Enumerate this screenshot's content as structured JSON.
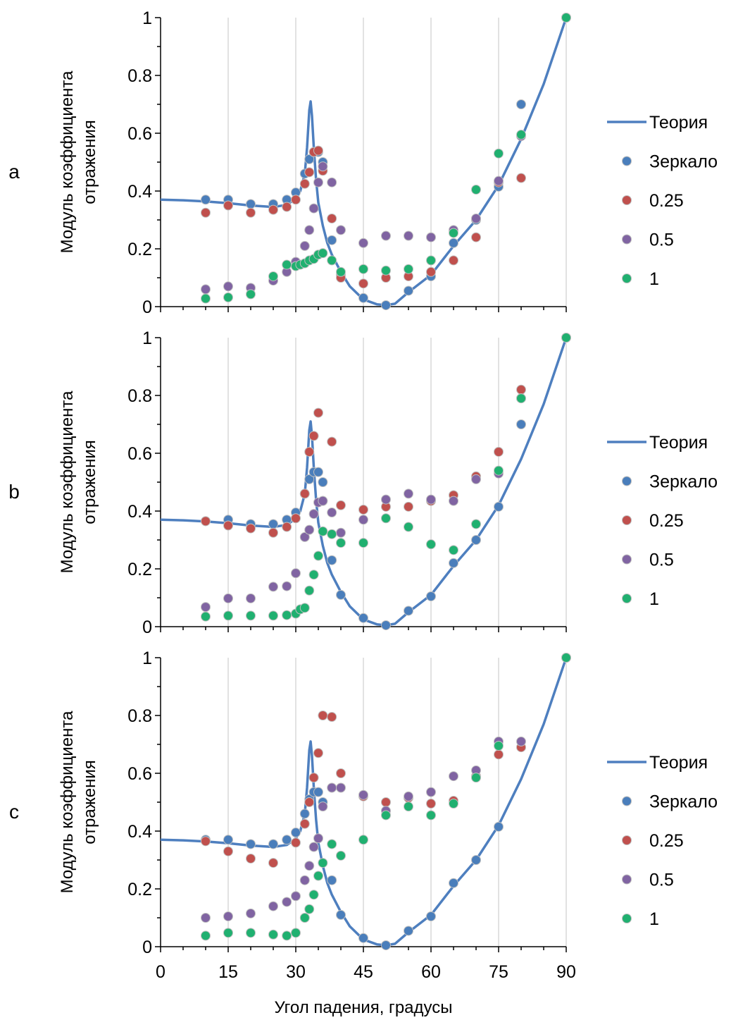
{
  "figure": {
    "ylabel_line1": "Модуль коэффициента",
    "ylabel_line2": "отражения",
    "xlabel": "Угол падения, градусы",
    "legend": [
      "Теория",
      "Зеркало",
      "0.25",
      "0.5",
      "1"
    ],
    "colors": {
      "theory": "#4e7fbf",
      "mirror": "#4a7ebb",
      "s025": "#c0504d",
      "s05": "#8064a2",
      "s1": "#20b070",
      "grid": "#d9d9d9"
    }
  },
  "chart_data": [
    {
      "type": "scatter",
      "panel_label": "a",
      "xlim": [
        0,
        90
      ],
      "ylim": [
        0,
        1
      ],
      "xticks": [
        0,
        15,
        30,
        45,
        60,
        75,
        90
      ],
      "yticks": [
        0,
        0.2,
        0.4,
        0.6,
        0.8,
        1
      ],
      "ytick_labels": [
        "0",
        "0.2",
        "0.4",
        "0.6",
        "0.8",
        "1"
      ],
      "grid": "vertical",
      "legend_position": "right",
      "series": [
        {
          "name": "Теория",
          "kind": "line",
          "x": [
            0,
            5,
            10,
            15,
            20,
            25,
            28,
            30,
            31,
            32,
            32.5,
            33,
            33.3,
            33.6,
            34,
            34.5,
            35,
            36,
            37,
            38,
            40,
            42,
            45,
            48,
            50,
            52,
            55,
            60,
            65,
            70,
            75,
            80,
            85,
            90
          ],
          "y": [
            0.37,
            0.368,
            0.364,
            0.358,
            0.35,
            0.345,
            0.352,
            0.375,
            0.4,
            0.46,
            0.55,
            0.68,
            0.71,
            0.66,
            0.55,
            0.44,
            0.36,
            0.28,
            0.22,
            0.18,
            0.12,
            0.07,
            0.025,
            0.008,
            0.005,
            0.01,
            0.05,
            0.11,
            0.21,
            0.3,
            0.42,
            0.58,
            0.77,
            1.0
          ]
        },
        {
          "name": "Зеркало",
          "kind": "points",
          "x": [
            10,
            15,
            20,
            25,
            28,
            30,
            32,
            33,
            34,
            35,
            36,
            38,
            40,
            45,
            50,
            55,
            60,
            65,
            70,
            75,
            80,
            90
          ],
          "y": [
            0.37,
            0.37,
            0.355,
            0.355,
            0.37,
            0.395,
            0.46,
            0.51,
            0.535,
            0.535,
            0.5,
            0.23,
            0.11,
            0.03,
            0.005,
            0.055,
            0.105,
            0.22,
            0.3,
            0.415,
            0.7,
            1.0
          ]
        },
        {
          "name": "0.25",
          "kind": "points",
          "x": [
            10,
            15,
            20,
            25,
            28,
            30,
            32,
            33,
            34,
            35,
            36,
            38,
            40,
            45,
            50,
            55,
            60,
            65,
            70,
            75,
            80
          ],
          "y": [
            0.325,
            0.35,
            0.325,
            0.335,
            0.345,
            0.37,
            0.425,
            0.465,
            0.535,
            0.54,
            0.47,
            0.305,
            0.1,
            0.08,
            0.1,
            0.105,
            0.12,
            0.16,
            0.24,
            0.43,
            0.445
          ]
        },
        {
          "name": "0.5",
          "kind": "points",
          "x": [
            10,
            15,
            20,
            25,
            28,
            30,
            32,
            33,
            34,
            35,
            36,
            38,
            40,
            45,
            50,
            55,
            60,
            65,
            70,
            75,
            80
          ],
          "y": [
            0.06,
            0.07,
            0.065,
            0.09,
            0.12,
            0.155,
            0.21,
            0.265,
            0.34,
            0.43,
            0.485,
            0.43,
            0.265,
            0.22,
            0.245,
            0.245,
            0.24,
            0.265,
            0.305,
            0.435,
            0.59
          ]
        },
        {
          "name": "1",
          "kind": "points",
          "x": [
            10,
            15,
            20,
            25,
            28,
            30,
            31,
            32,
            33,
            34,
            35,
            36,
            38,
            40,
            45,
            50,
            55,
            60,
            65,
            70,
            75,
            80,
            90
          ],
          "y": [
            0.028,
            0.032,
            0.043,
            0.105,
            0.145,
            0.14,
            0.145,
            0.15,
            0.16,
            0.165,
            0.18,
            0.185,
            0.16,
            0.12,
            0.13,
            0.125,
            0.13,
            0.16,
            0.255,
            0.405,
            0.53,
            0.595,
            1.0
          ]
        }
      ]
    },
    {
      "type": "scatter",
      "panel_label": "b",
      "xlim": [
        0,
        90
      ],
      "ylim": [
        0,
        1
      ],
      "xticks": [
        0,
        15,
        30,
        45,
        60,
        75,
        90
      ],
      "yticks": [
        0,
        0.2,
        0.4,
        0.6,
        0.8,
        1
      ],
      "ytick_labels": [
        "0",
        "0.2",
        "0.4",
        "0.6",
        "0.8",
        "1"
      ],
      "grid": "vertical",
      "legend_position": "right",
      "series": [
        {
          "name": "Теория",
          "kind": "line",
          "x": [
            0,
            5,
            10,
            15,
            20,
            25,
            28,
            30,
            31,
            32,
            32.5,
            33,
            33.3,
            33.6,
            34,
            34.5,
            35,
            36,
            37,
            38,
            40,
            42,
            45,
            48,
            50,
            52,
            55,
            60,
            65,
            70,
            75,
            80,
            85,
            90
          ],
          "y": [
            0.37,
            0.368,
            0.364,
            0.358,
            0.35,
            0.345,
            0.352,
            0.375,
            0.4,
            0.46,
            0.55,
            0.68,
            0.71,
            0.66,
            0.55,
            0.44,
            0.36,
            0.28,
            0.22,
            0.18,
            0.12,
            0.07,
            0.025,
            0.008,
            0.005,
            0.01,
            0.05,
            0.11,
            0.21,
            0.3,
            0.42,
            0.58,
            0.77,
            1.0
          ]
        },
        {
          "name": "Зеркало",
          "kind": "points",
          "x": [
            10,
            15,
            20,
            25,
            28,
            30,
            32,
            33,
            34,
            35,
            36,
            38,
            40,
            45,
            50,
            55,
            60,
            65,
            70,
            75,
            80,
            90
          ],
          "y": [
            0.365,
            0.37,
            0.355,
            0.355,
            0.37,
            0.395,
            0.46,
            0.51,
            0.535,
            0.535,
            0.5,
            0.23,
            0.11,
            0.03,
            0.005,
            0.055,
            0.105,
            0.22,
            0.3,
            0.415,
            0.7,
            1.0
          ]
        },
        {
          "name": "0.25",
          "kind": "points",
          "x": [
            10,
            15,
            20,
            25,
            28,
            30,
            32,
            33,
            34,
            35,
            36,
            38,
            40,
            45,
            50,
            55,
            60,
            65,
            70,
            75,
            80
          ],
          "y": [
            0.365,
            0.35,
            0.34,
            0.325,
            0.345,
            0.375,
            0.46,
            0.605,
            0.66,
            0.74,
            0.435,
            0.64,
            0.42,
            0.405,
            0.415,
            0.415,
            0.435,
            0.455,
            0.52,
            0.605,
            0.82
          ]
        },
        {
          "name": "0.5",
          "kind": "points",
          "x": [
            10,
            15,
            20,
            25,
            28,
            30,
            32,
            33,
            34,
            35,
            36,
            38,
            40,
            45,
            50,
            55,
            60,
            65,
            70,
            75,
            80
          ],
          "y": [
            0.068,
            0.098,
            0.098,
            0.138,
            0.14,
            0.185,
            0.31,
            0.335,
            0.39,
            0.43,
            0.435,
            0.395,
            0.325,
            0.37,
            0.44,
            0.46,
            0.44,
            0.435,
            0.51,
            0.53,
            0.79
          ]
        },
        {
          "name": "1",
          "kind": "points",
          "x": [
            10,
            15,
            20,
            25,
            28,
            30,
            31,
            32,
            33,
            34,
            35,
            36,
            38,
            40,
            45,
            50,
            55,
            60,
            65,
            70,
            75,
            80,
            90
          ],
          "y": [
            0.035,
            0.038,
            0.038,
            0.038,
            0.04,
            0.045,
            0.06,
            0.065,
            0.125,
            0.18,
            0.245,
            0.33,
            0.32,
            0.29,
            0.29,
            0.375,
            0.345,
            0.285,
            0.265,
            0.355,
            0.54,
            0.79,
            1.0
          ]
        }
      ]
    },
    {
      "type": "scatter",
      "panel_label": "c",
      "xlim": [
        0,
        90
      ],
      "ylim": [
        0,
        1
      ],
      "xticks": [
        0,
        15,
        30,
        45,
        60,
        75,
        90
      ],
      "xtick_labels": [
        "0",
        "15",
        "30",
        "45",
        "60",
        "75",
        "90"
      ],
      "yticks": [
        0,
        0.2,
        0.4,
        0.6,
        0.8,
        1
      ],
      "ytick_labels": [
        "0",
        "0.2",
        "0.4",
        "0.6",
        "0.8",
        "1"
      ],
      "grid": "vertical",
      "legend_position": "right",
      "series": [
        {
          "name": "Теория",
          "kind": "line",
          "x": [
            0,
            5,
            10,
            15,
            20,
            25,
            28,
            30,
            31,
            32,
            32.5,
            33,
            33.3,
            33.6,
            34,
            34.5,
            35,
            36,
            37,
            38,
            40,
            42,
            45,
            48,
            50,
            52,
            55,
            60,
            65,
            70,
            75,
            80,
            85,
            90
          ],
          "y": [
            0.37,
            0.368,
            0.364,
            0.358,
            0.35,
            0.345,
            0.352,
            0.375,
            0.4,
            0.46,
            0.55,
            0.68,
            0.71,
            0.66,
            0.55,
            0.44,
            0.36,
            0.28,
            0.22,
            0.18,
            0.12,
            0.07,
            0.025,
            0.008,
            0.005,
            0.01,
            0.05,
            0.11,
            0.21,
            0.3,
            0.42,
            0.58,
            0.77,
            1.0
          ]
        },
        {
          "name": "Зеркало",
          "kind": "points",
          "x": [
            10,
            15,
            20,
            25,
            28,
            30,
            32,
            33,
            34,
            35,
            36,
            38,
            40,
            45,
            50,
            55,
            60,
            65,
            70,
            75,
            90
          ],
          "y": [
            0.37,
            0.37,
            0.355,
            0.355,
            0.37,
            0.395,
            0.46,
            0.51,
            0.535,
            0.535,
            0.5,
            0.23,
            0.11,
            0.03,
            0.005,
            0.055,
            0.105,
            0.22,
            0.3,
            0.415,
            1.0
          ]
        },
        {
          "name": "0.25",
          "kind": "points",
          "x": [
            10,
            15,
            20,
            25,
            30,
            32,
            33,
            34,
            35,
            36,
            38,
            40,
            45,
            50,
            55,
            60,
            65,
            70,
            75,
            80
          ],
          "y": [
            0.365,
            0.33,
            0.305,
            0.29,
            0.36,
            0.425,
            0.5,
            0.585,
            0.67,
            0.8,
            0.795,
            0.6,
            0.52,
            0.5,
            0.515,
            0.495,
            0.505,
            0.59,
            0.665,
            0.69
          ]
        },
        {
          "name": "0.5",
          "kind": "points",
          "x": [
            10,
            15,
            20,
            25,
            28,
            30,
            32,
            33,
            34,
            35,
            36,
            38,
            40,
            45,
            50,
            55,
            60,
            65,
            70,
            75,
            80
          ],
          "y": [
            0.1,
            0.105,
            0.115,
            0.14,
            0.155,
            0.175,
            0.23,
            0.28,
            0.345,
            0.375,
            0.485,
            0.55,
            0.55,
            0.525,
            0.47,
            0.52,
            0.535,
            0.59,
            0.61,
            0.71,
            0.71
          ]
        },
        {
          "name": "1",
          "kind": "points",
          "x": [
            10,
            15,
            20,
            25,
            28,
            30,
            32,
            33,
            34,
            35,
            36,
            38,
            40,
            45,
            50,
            55,
            60,
            65,
            70,
            75,
            90
          ],
          "y": [
            0.038,
            0.048,
            0.048,
            0.042,
            0.038,
            0.048,
            0.1,
            0.13,
            0.18,
            0.245,
            0.29,
            0.355,
            0.315,
            0.37,
            0.455,
            0.485,
            0.455,
            0.495,
            0.585,
            0.695,
            1.0
          ]
        }
      ]
    }
  ]
}
